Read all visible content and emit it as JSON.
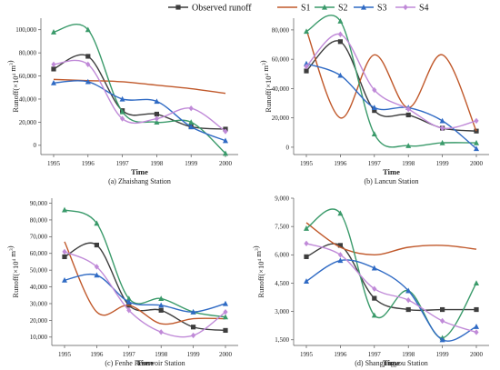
{
  "legend": {
    "entries": [
      "Observed runoff",
      "S1",
      "S2",
      "S3",
      "S4"
    ]
  },
  "series_colors": {
    "Observed runoff": "#3d3d3d",
    "S1": "#c0582a",
    "S2": "#3a9a6a",
    "S3": "#2f6ac4",
    "S4": "#c08ad8"
  },
  "series_markers": {
    "Observed runoff": "square",
    "S1": "none",
    "S2": "triangle",
    "S3": "triangle",
    "S4": "diamond"
  },
  "chart_data": [
    {
      "type": "line",
      "caption": "(a) Zhaishang Station",
      "xlabel": "Time",
      "ylabel_main": "Runoff(×10",
      "ylabel_sup": "4",
      "ylabel_end": " m",
      "ylabel_sup2": "3",
      "ylabel_close": ")",
      "x": [
        1995,
        1996,
        1997,
        1998,
        1999,
        2000
      ],
      "ylim": [
        -8000,
        110000
      ],
      "yticks": [
        0,
        20000,
        40000,
        60000,
        80000,
        100000
      ],
      "ytick_labels": [
        "0",
        "20,000",
        "40,000",
        "60,000",
        "80,000",
        "100,000"
      ],
      "series": [
        {
          "name": "Observed runoff",
          "values": [
            66000,
            77000,
            30000,
            27000,
            16000,
            14000
          ]
        },
        {
          "name": "S1",
          "values": [
            57000,
            56000,
            55000,
            52000,
            49000,
            45000
          ]
        },
        {
          "name": "S2",
          "values": [
            98000,
            100000,
            29000,
            20000,
            20000,
            -7000
          ]
        },
        {
          "name": "S3",
          "values": [
            54000,
            55000,
            40000,
            38000,
            16000,
            4000
          ]
        },
        {
          "name": "S4",
          "values": [
            70000,
            70000,
            23000,
            23000,
            32000,
            12000
          ]
        }
      ]
    },
    {
      "type": "line",
      "caption": "(b) Lancun Station",
      "xlabel": "Time",
      "ylabel_main": "Runoff(×10",
      "ylabel_sup": "4",
      "ylabel_end": " m",
      "ylabel_sup2": "3",
      "ylabel_close": ")",
      "x": [
        1995,
        1996,
        1997,
        1998,
        1999,
        2000
      ],
      "ylim": [
        -5000,
        88000
      ],
      "yticks": [
        0,
        20000,
        40000,
        60000,
        80000
      ],
      "ytick_labels": [
        "0",
        "20,000",
        "40,000",
        "60,000",
        "80,000"
      ],
      "series": [
        {
          "name": "Observed runoff",
          "values": [
            52000,
            72000,
            25000,
            22000,
            13000,
            11000
          ]
        },
        {
          "name": "S1",
          "values": [
            80000,
            20000,
            63000,
            27000,
            63000,
            11000
          ]
        },
        {
          "name": "S2",
          "values": [
            79000,
            86000,
            9000,
            1000,
            3000,
            3000
          ]
        },
        {
          "name": "S3",
          "values": [
            57000,
            49000,
            27000,
            27000,
            18000,
            -1000
          ]
        },
        {
          "name": "S4",
          "values": [
            55000,
            77000,
            39000,
            26000,
            13000,
            18000
          ]
        }
      ]
    },
    {
      "type": "line",
      "caption": "(c) Fenhe Reservoir Station",
      "xlabel": "Time",
      "ylabel_main": "Runoff(×10",
      "ylabel_sup": "4",
      "ylabel_end": " m",
      "ylabel_sup2": "3",
      "ylabel_close": ")",
      "x": [
        1995,
        1996,
        1997,
        1998,
        1999,
        2000
      ],
      "ylim": [
        5000,
        93000
      ],
      "yticks": [
        10000,
        20000,
        30000,
        40000,
        50000,
        60000,
        70000,
        80000,
        90000
      ],
      "ytick_labels": [
        "10,000",
        "20,000",
        "30,000",
        "40,000",
        "50,000",
        "60,000",
        "70,000",
        "80,000",
        "90,000"
      ],
      "series": [
        {
          "name": "Observed runoff",
          "values": [
            58000,
            65000,
            29000,
            26000,
            16000,
            14000
          ]
        },
        {
          "name": "S1",
          "values": [
            67000,
            25000,
            29000,
            18000,
            21000,
            21000
          ]
        },
        {
          "name": "S2",
          "values": [
            86000,
            78000,
            33000,
            33000,
            25000,
            22000
          ]
        },
        {
          "name": "S3",
          "values": [
            44000,
            47000,
            31000,
            29000,
            25000,
            30000
          ]
        },
        {
          "name": "S4",
          "values": [
            61000,
            52000,
            26000,
            13000,
            11000,
            25000
          ]
        }
      ]
    },
    {
      "type": "line",
      "caption": "(d) Shangjingyou Station",
      "xlabel": "Time",
      "ylabel_main": "Runoff(×10",
      "ylabel_sup": "4",
      "ylabel_end": " m",
      "ylabel_sup2": "3",
      "ylabel_close": ")",
      "x": [
        1995,
        1996,
        1997,
        1998,
        1999,
        2000
      ],
      "ylim": [
        1200,
        9000
      ],
      "yticks": [
        1500,
        3000,
        4500,
        6000,
        7500,
        9000
      ],
      "ytick_labels": [
        "1,500",
        "3,000",
        "4,500",
        "6,000",
        "7,500",
        "9,000"
      ],
      "series": [
        {
          "name": "Observed runoff",
          "values": [
            5900,
            6500,
            3700,
            3100,
            3100,
            3100
          ]
        },
        {
          "name": "S1",
          "values": [
            7700,
            6400,
            6000,
            6400,
            6500,
            6300
          ]
        },
        {
          "name": "S2",
          "values": [
            7400,
            8200,
            2800,
            4100,
            1600,
            4500
          ]
        },
        {
          "name": "S3",
          "values": [
            4600,
            5700,
            5300,
            4100,
            1500,
            2200
          ]
        },
        {
          "name": "S4",
          "values": [
            6600,
            6000,
            4200,
            3600,
            2500,
            1900
          ]
        }
      ]
    }
  ]
}
